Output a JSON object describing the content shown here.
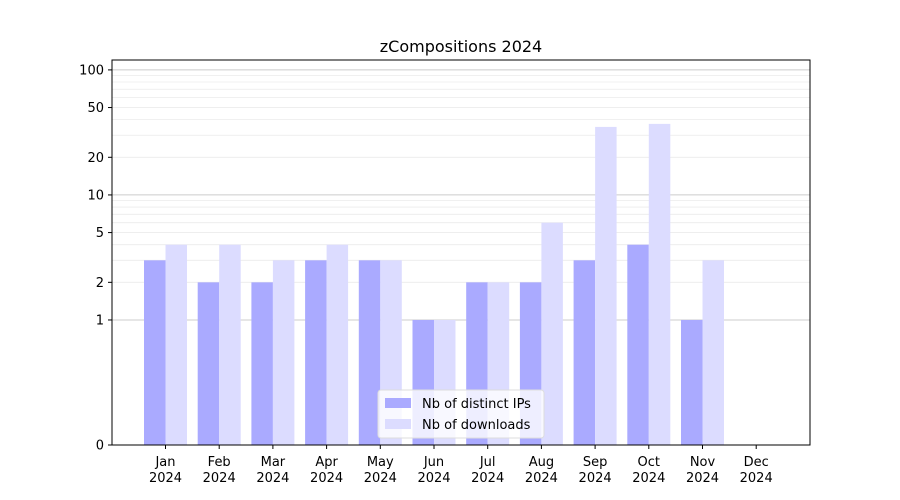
{
  "chart_data": {
    "type": "bar",
    "title": "zCompositions 2024",
    "categories": [
      [
        "Jan",
        "2024"
      ],
      [
        "Feb",
        "2024"
      ],
      [
        "Mar",
        "2024"
      ],
      [
        "Apr",
        "2024"
      ],
      [
        "May",
        "2024"
      ],
      [
        "Jun",
        "2024"
      ],
      [
        "Jul",
        "2024"
      ],
      [
        "Aug",
        "2024"
      ],
      [
        "Sep",
        "2024"
      ],
      [
        "Oct",
        "2024"
      ],
      [
        "Nov",
        "2024"
      ],
      [
        "Dec",
        "2024"
      ]
    ],
    "series": [
      {
        "name": "Nb of distinct IPs",
        "color": "#aaaaff",
        "values": [
          3,
          2,
          2,
          3,
          3,
          1,
          2,
          2,
          3,
          4,
          1,
          0
        ]
      },
      {
        "name": "Nb of downloads",
        "color": "#dcdcff",
        "values": [
          4,
          4,
          3,
          4,
          3,
          1,
          2,
          6,
          35,
          37,
          3,
          0
        ]
      }
    ],
    "yscale": "symlog",
    "yticks": [
      0,
      1,
      2,
      5,
      10,
      20,
      50,
      100
    ],
    "ylim": [
      0,
      120
    ],
    "grid": true,
    "legend_position": "bottom-center"
  }
}
